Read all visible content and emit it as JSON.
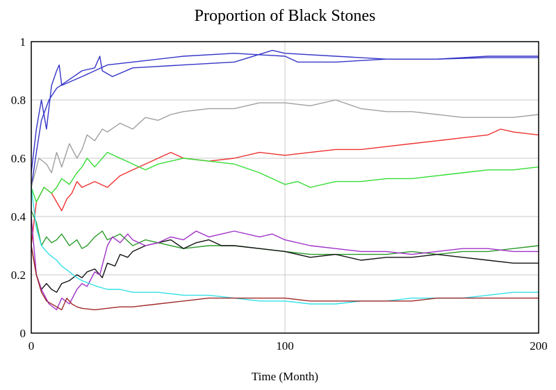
{
  "chart_data": {
    "type": "line",
    "title": "Proportion of Black Stones",
    "xlabel": "Time (Month)",
    "ylabel": "",
    "xlim": [
      0,
      200
    ],
    "ylim": [
      0,
      1
    ],
    "x_ticks": [
      "0",
      "100",
      "200"
    ],
    "y_ticks": [
      "0",
      "0.2",
      "0.4",
      "0.6",
      "0.8",
      "1"
    ],
    "grid": true,
    "legend": "none",
    "series": [
      {
        "color": "#3535c8",
        "points": [
          [
            0,
            0.55
          ],
          [
            2,
            0.7
          ],
          [
            4,
            0.8
          ],
          [
            6,
            0.7
          ],
          [
            8,
            0.85
          ],
          [
            10,
            0.9
          ],
          [
            11,
            0.92
          ],
          [
            12,
            0.85
          ],
          [
            20,
            0.88
          ],
          [
            30,
            0.92
          ],
          [
            40,
            0.93
          ],
          [
            60,
            0.95
          ],
          [
            80,
            0.96
          ],
          [
            100,
            0.95
          ],
          [
            105,
            0.93
          ],
          [
            120,
            0.93
          ],
          [
            140,
            0.94
          ],
          [
            160,
            0.94
          ],
          [
            180,
            0.945
          ],
          [
            200,
            0.945
          ]
        ]
      },
      {
        "color": "#3535c8",
        "points": [
          [
            0,
            0.5
          ],
          [
            2,
            0.62
          ],
          [
            4,
            0.73
          ],
          [
            7,
            0.8
          ],
          [
            10,
            0.84
          ],
          [
            15,
            0.87
          ],
          [
            20,
            0.9
          ],
          [
            25,
            0.91
          ],
          [
            27,
            0.95
          ],
          [
            28,
            0.9
          ],
          [
            32,
            0.88
          ],
          [
            40,
            0.91
          ],
          [
            60,
            0.92
          ],
          [
            80,
            0.93
          ],
          [
            95,
            0.97
          ],
          [
            100,
            0.96
          ],
          [
            120,
            0.95
          ],
          [
            140,
            0.94
          ],
          [
            160,
            0.94
          ],
          [
            180,
            0.95
          ],
          [
            200,
            0.95
          ]
        ]
      },
      {
        "color": "#a0a0a0",
        "points": [
          [
            0,
            0.5
          ],
          [
            3,
            0.6
          ],
          [
            6,
            0.58
          ],
          [
            8,
            0.55
          ],
          [
            10,
            0.62
          ],
          [
            12,
            0.57
          ],
          [
            15,
            0.65
          ],
          [
            18,
            0.6
          ],
          [
            20,
            0.63
          ],
          [
            22,
            0.68
          ],
          [
            25,
            0.66
          ],
          [
            28,
            0.7
          ],
          [
            30,
            0.69
          ],
          [
            35,
            0.72
          ],
          [
            40,
            0.7
          ],
          [
            45,
            0.74
          ],
          [
            50,
            0.73
          ],
          [
            55,
            0.75
          ],
          [
            60,
            0.76
          ],
          [
            70,
            0.77
          ],
          [
            80,
            0.77
          ],
          [
            90,
            0.79
          ],
          [
            100,
            0.79
          ],
          [
            110,
            0.78
          ],
          [
            120,
            0.8
          ],
          [
            130,
            0.77
          ],
          [
            140,
            0.76
          ],
          [
            150,
            0.76
          ],
          [
            160,
            0.75
          ],
          [
            170,
            0.74
          ],
          [
            180,
            0.74
          ],
          [
            190,
            0.74
          ],
          [
            200,
            0.75
          ]
        ]
      },
      {
        "color": "#ee3030",
        "points": [
          [
            0,
            0.3
          ],
          [
            2,
            0.45
          ],
          [
            5,
            0.5
          ],
          [
            8,
            0.48
          ],
          [
            10,
            0.45
          ],
          [
            12,
            0.42
          ],
          [
            14,
            0.46
          ],
          [
            16,
            0.48
          ],
          [
            18,
            0.52
          ],
          [
            20,
            0.5
          ],
          [
            25,
            0.52
          ],
          [
            30,
            0.5
          ],
          [
            35,
            0.54
          ],
          [
            40,
            0.56
          ],
          [
            45,
            0.58
          ],
          [
            50,
            0.6
          ],
          [
            55,
            0.62
          ],
          [
            60,
            0.6
          ],
          [
            70,
            0.59
          ],
          [
            80,
            0.6
          ],
          [
            90,
            0.62
          ],
          [
            100,
            0.61
          ],
          [
            110,
            0.62
          ],
          [
            120,
            0.63
          ],
          [
            130,
            0.63
          ],
          [
            140,
            0.64
          ],
          [
            150,
            0.65
          ],
          [
            160,
            0.66
          ],
          [
            170,
            0.67
          ],
          [
            180,
            0.68
          ],
          [
            185,
            0.7
          ],
          [
            190,
            0.69
          ],
          [
            200,
            0.68
          ]
        ]
      },
      {
        "color": "#33dd33",
        "points": [
          [
            0,
            0.5
          ],
          [
            2,
            0.45
          ],
          [
            5,
            0.5
          ],
          [
            8,
            0.48
          ],
          [
            10,
            0.5
          ],
          [
            12,
            0.53
          ],
          [
            15,
            0.51
          ],
          [
            18,
            0.55
          ],
          [
            20,
            0.57
          ],
          [
            22,
            0.6
          ],
          [
            25,
            0.57
          ],
          [
            30,
            0.62
          ],
          [
            35,
            0.6
          ],
          [
            40,
            0.58
          ],
          [
            45,
            0.56
          ],
          [
            50,
            0.58
          ],
          [
            55,
            0.59
          ],
          [
            60,
            0.6
          ],
          [
            70,
            0.59
          ],
          [
            80,
            0.58
          ],
          [
            90,
            0.55
          ],
          [
            100,
            0.51
          ],
          [
            105,
            0.52
          ],
          [
            110,
            0.5
          ],
          [
            120,
            0.52
          ],
          [
            130,
            0.52
          ],
          [
            140,
            0.53
          ],
          [
            150,
            0.53
          ],
          [
            160,
            0.54
          ],
          [
            170,
            0.55
          ],
          [
            180,
            0.56
          ],
          [
            190,
            0.56
          ],
          [
            200,
            0.57
          ]
        ]
      },
      {
        "color": "#2a9a2a",
        "points": [
          [
            0,
            0.42
          ],
          [
            2,
            0.38
          ],
          [
            4,
            0.3
          ],
          [
            6,
            0.33
          ],
          [
            8,
            0.31
          ],
          [
            10,
            0.32
          ],
          [
            12,
            0.34
          ],
          [
            15,
            0.3
          ],
          [
            18,
            0.32
          ],
          [
            20,
            0.29
          ],
          [
            22,
            0.3
          ],
          [
            25,
            0.33
          ],
          [
            28,
            0.35
          ],
          [
            30,
            0.32
          ],
          [
            35,
            0.34
          ],
          [
            40,
            0.3
          ],
          [
            45,
            0.32
          ],
          [
            50,
            0.31
          ],
          [
            60,
            0.29
          ],
          [
            70,
            0.3
          ],
          [
            80,
            0.3
          ],
          [
            90,
            0.29
          ],
          [
            100,
            0.28
          ],
          [
            110,
            0.27
          ],
          [
            120,
            0.27
          ],
          [
            130,
            0.27
          ],
          [
            140,
            0.27
          ],
          [
            150,
            0.28
          ],
          [
            160,
            0.27
          ],
          [
            170,
            0.28
          ],
          [
            180,
            0.28
          ],
          [
            190,
            0.29
          ],
          [
            200,
            0.3
          ]
        ]
      },
      {
        "color": "#111111",
        "points": [
          [
            0,
            0.3
          ],
          [
            2,
            0.2
          ],
          [
            4,
            0.15
          ],
          [
            6,
            0.17
          ],
          [
            8,
            0.15
          ],
          [
            10,
            0.14
          ],
          [
            12,
            0.17
          ],
          [
            15,
            0.18
          ],
          [
            18,
            0.2
          ],
          [
            20,
            0.19
          ],
          [
            22,
            0.21
          ],
          [
            25,
            0.22
          ],
          [
            28,
            0.19
          ],
          [
            30,
            0.24
          ],
          [
            33,
            0.23
          ],
          [
            35,
            0.27
          ],
          [
            38,
            0.26
          ],
          [
            40,
            0.28
          ],
          [
            45,
            0.3
          ],
          [
            50,
            0.31
          ],
          [
            55,
            0.32
          ],
          [
            60,
            0.29
          ],
          [
            65,
            0.31
          ],
          [
            70,
            0.32
          ],
          [
            75,
            0.3
          ],
          [
            80,
            0.3
          ],
          [
            90,
            0.29
          ],
          [
            100,
            0.28
          ],
          [
            110,
            0.26
          ],
          [
            120,
            0.27
          ],
          [
            130,
            0.25
          ],
          [
            140,
            0.26
          ],
          [
            150,
            0.26
          ],
          [
            160,
            0.27
          ],
          [
            170,
            0.26
          ],
          [
            180,
            0.25
          ],
          [
            190,
            0.24
          ],
          [
            200,
            0.24
          ]
        ]
      },
      {
        "color": "#a030c8",
        "points": [
          [
            0,
            0.4
          ],
          [
            2,
            0.2
          ],
          [
            4,
            0.15
          ],
          [
            7,
            0.1
          ],
          [
            10,
            0.08
          ],
          [
            12,
            0.12
          ],
          [
            15,
            0.1
          ],
          [
            18,
            0.15
          ],
          [
            20,
            0.17
          ],
          [
            22,
            0.16
          ],
          [
            25,
            0.21
          ],
          [
            27,
            0.2
          ],
          [
            30,
            0.3
          ],
          [
            32,
            0.33
          ],
          [
            35,
            0.31
          ],
          [
            38,
            0.34
          ],
          [
            40,
            0.32
          ],
          [
            45,
            0.3
          ],
          [
            50,
            0.31
          ],
          [
            55,
            0.33
          ],
          [
            60,
            0.32
          ],
          [
            65,
            0.35
          ],
          [
            70,
            0.33
          ],
          [
            75,
            0.34
          ],
          [
            80,
            0.35
          ],
          [
            90,
            0.33
          ],
          [
            95,
            0.34
          ],
          [
            100,
            0.32
          ],
          [
            110,
            0.3
          ],
          [
            120,
            0.29
          ],
          [
            130,
            0.28
          ],
          [
            140,
            0.28
          ],
          [
            150,
            0.27
          ],
          [
            160,
            0.28
          ],
          [
            170,
            0.29
          ],
          [
            180,
            0.29
          ],
          [
            190,
            0.28
          ],
          [
            200,
            0.28
          ]
        ]
      },
      {
        "color": "#33e0e8",
        "points": [
          [
            0,
            0.5
          ],
          [
            2,
            0.36
          ],
          [
            4,
            0.3
          ],
          [
            7,
            0.27
          ],
          [
            10,
            0.25
          ],
          [
            12,
            0.23
          ],
          [
            15,
            0.21
          ],
          [
            18,
            0.19
          ],
          [
            20,
            0.18
          ],
          [
            23,
            0.17
          ],
          [
            26,
            0.16
          ],
          [
            30,
            0.15
          ],
          [
            35,
            0.15
          ],
          [
            40,
            0.14
          ],
          [
            50,
            0.14
          ],
          [
            60,
            0.13
          ],
          [
            70,
            0.13
          ],
          [
            80,
            0.12
          ],
          [
            90,
            0.11
          ],
          [
            100,
            0.11
          ],
          [
            110,
            0.1
          ],
          [
            120,
            0.1
          ],
          [
            130,
            0.11
          ],
          [
            140,
            0.11
          ],
          [
            150,
            0.12
          ],
          [
            160,
            0.12
          ],
          [
            170,
            0.12
          ],
          [
            180,
            0.13
          ],
          [
            190,
            0.14
          ],
          [
            200,
            0.14
          ]
        ]
      },
      {
        "color": "#a02828",
        "points": [
          [
            0,
            0.3
          ],
          [
            2,
            0.2
          ],
          [
            4,
            0.14
          ],
          [
            6,
            0.11
          ],
          [
            8,
            0.1
          ],
          [
            10,
            0.09
          ],
          [
            12,
            0.08
          ],
          [
            14,
            0.12
          ],
          [
            16,
            0.1
          ],
          [
            18,
            0.09
          ],
          [
            20,
            0.085
          ],
          [
            25,
            0.08
          ],
          [
            30,
            0.085
          ],
          [
            35,
            0.09
          ],
          [
            40,
            0.09
          ],
          [
            50,
            0.1
          ],
          [
            60,
            0.11
          ],
          [
            70,
            0.12
          ],
          [
            80,
            0.12
          ],
          [
            90,
            0.12
          ],
          [
            100,
            0.12
          ],
          [
            110,
            0.11
          ],
          [
            120,
            0.11
          ],
          [
            130,
            0.11
          ],
          [
            140,
            0.11
          ],
          [
            150,
            0.11
          ],
          [
            160,
            0.12
          ],
          [
            170,
            0.12
          ],
          [
            180,
            0.12
          ],
          [
            190,
            0.12
          ],
          [
            200,
            0.12
          ]
        ]
      }
    ]
  }
}
